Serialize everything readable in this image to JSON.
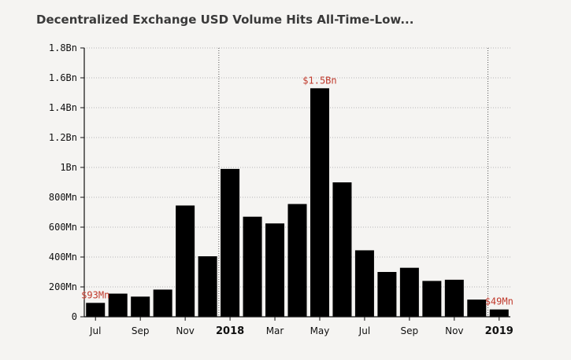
{
  "chart_data": {
    "type": "bar",
    "title": "Decentralized Exchange USD Volume Hits All-Time-Low...",
    "categories": [
      "Jul 2017",
      "Aug 2017",
      "Sep 2017",
      "Oct 2017",
      "Nov 2017",
      "Dec 2017",
      "Jan 2018",
      "Feb 2018",
      "Mar 2018",
      "Apr 2018",
      "May 2018",
      "Jun 2018",
      "Jul 2018",
      "Aug 2018",
      "Sep 2018",
      "Oct 2018",
      "Nov 2018",
      "Dec 2018",
      "Jan 2019"
    ],
    "values": [
      93,
      155,
      135,
      182,
      745,
      405,
      990,
      670,
      625,
      755,
      1530,
      900,
      445,
      300,
      328,
      240,
      248,
      115,
      49
    ],
    "unit": "Mn",
    "ylim": [
      0,
      1800
    ],
    "yticks": [
      {
        "value": 0,
        "label": "0"
      },
      {
        "value": 200,
        "label": "200Mn"
      },
      {
        "value": 400,
        "label": "400Mn"
      },
      {
        "value": 600,
        "label": "600Mn"
      },
      {
        "value": 800,
        "label": "800Mn"
      },
      {
        "value": 1000,
        "label": "1Bn"
      },
      {
        "value": 1200,
        "label": "1.2Bn"
      },
      {
        "value": 1400,
        "label": "1.4Bn"
      },
      {
        "value": 1600,
        "label": "1.6Bn"
      },
      {
        "value": 1800,
        "label": "1.8Bn"
      }
    ],
    "xticks": [
      {
        "index": 0,
        "label": "Jul",
        "year": false
      },
      {
        "index": 2,
        "label": "Sep",
        "year": false
      },
      {
        "index": 4,
        "label": "Nov",
        "year": false
      },
      {
        "index": 6,
        "label": "2018",
        "year": true
      },
      {
        "index": 8,
        "label": "Mar",
        "year": false
      },
      {
        "index": 10,
        "label": "May",
        "year": false
      },
      {
        "index": 12,
        "label": "Jul",
        "year": false
      },
      {
        "index": 14,
        "label": "Sep",
        "year": false
      },
      {
        "index": 16,
        "label": "Nov",
        "year": false
      },
      {
        "index": 18,
        "label": "2019",
        "year": true
      }
    ],
    "year_dividers_before_index": [
      6,
      18
    ],
    "annotations": [
      {
        "index": 0,
        "label": "$93Mn"
      },
      {
        "index": 10,
        "label": "$1.5Bn"
      },
      {
        "index": 18,
        "label": "$49Mn"
      }
    ],
    "grid": true,
    "colors": {
      "bar": "#000000",
      "grid": "#b5b5b5",
      "annotation": "#c0392b",
      "title": "#3a3a3a"
    }
  }
}
